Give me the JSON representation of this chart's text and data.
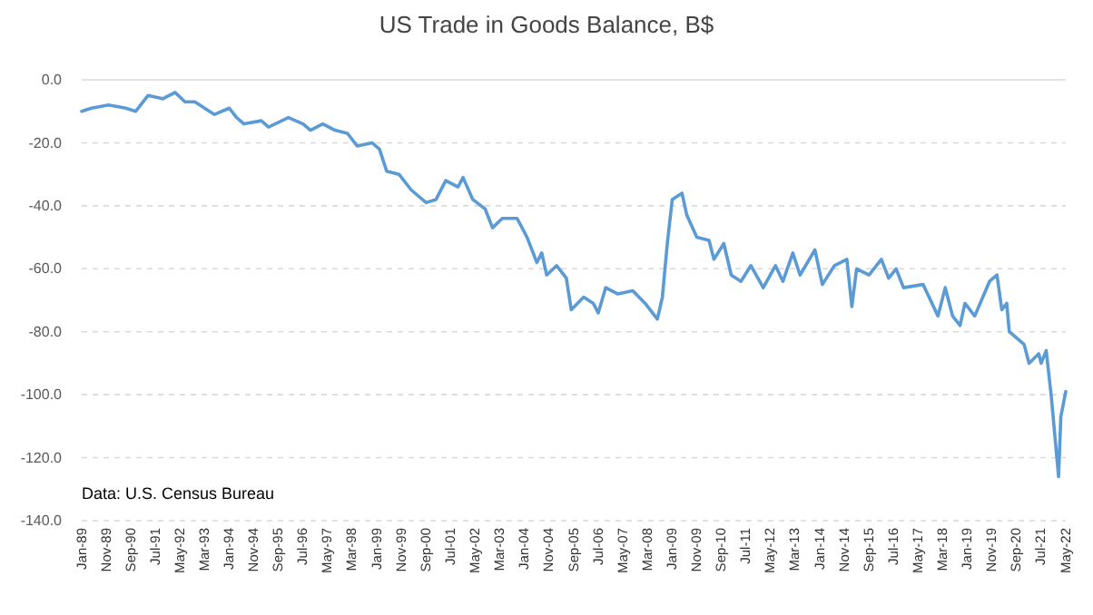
{
  "chart_data": {
    "type": "line",
    "title": "US Trade in Goods Balance, B$",
    "annotations": [
      "Data: U.S. Census Bureau"
    ],
    "x": [
      "1989-01",
      "1989-05",
      "1989-12",
      "1990-07",
      "1990-11",
      "1991-04",
      "1991-10",
      "1992-03",
      "1992-07",
      "1992-11",
      "1993-03",
      "1993-07",
      "1994-01",
      "1994-04",
      "1994-07",
      "1995-02",
      "1995-05",
      "1996-01",
      "1996-07",
      "1996-10",
      "1997-03",
      "1997-08",
      "1998-01",
      "1998-05",
      "1998-11",
      "1999-02",
      "1999-05",
      "1999-10",
      "2000-03",
      "2000-09",
      "2001-01",
      "2001-05",
      "2001-10",
      "2001-12",
      "2002-04",
      "2002-09",
      "2002-12",
      "2003-04",
      "2003-10",
      "2004-02",
      "2004-06",
      "2004-08",
      "2004-10",
      "2005-02",
      "2005-06",
      "2005-08",
      "2006-01",
      "2006-05",
      "2006-07",
      "2006-10",
      "2007-03",
      "2007-09",
      "2008-02",
      "2008-07",
      "2008-09",
      "2008-11",
      "2009-01",
      "2009-05",
      "2009-07",
      "2009-11",
      "2010-04",
      "2010-06",
      "2010-10",
      "2011-01",
      "2011-05",
      "2011-09",
      "2012-02",
      "2012-07",
      "2012-10",
      "2013-02",
      "2013-05",
      "2013-11",
      "2014-02",
      "2014-07",
      "2014-12",
      "2015-02",
      "2015-04",
      "2015-09",
      "2016-02",
      "2016-05",
      "2016-08",
      "2016-11",
      "2017-07",
      "2018-01",
      "2018-04",
      "2018-07",
      "2018-10",
      "2018-12",
      "2019-04",
      "2019-10",
      "2020-01",
      "2020-03",
      "2020-05",
      "2020-06",
      "2020-12",
      "2021-02",
      "2021-06",
      "2021-07",
      "2021-09",
      "2021-11",
      "2022-02",
      "2022-03",
      "2022-05"
    ],
    "series": [
      {
        "color": "#5b9bd5",
        "values": [
          -10,
          -9,
          -8,
          -9,
          -10,
          -5,
          -6,
          -4,
          -7,
          -7,
          -9,
          -11,
          -9,
          -12,
          -14,
          -13,
          -15,
          -12,
          -14,
          -16,
          -14,
          -16,
          -17,
          -21,
          -20,
          -22,
          -29,
          -30,
          -35,
          -39,
          -38,
          -32,
          -34,
          -31,
          -38,
          -41,
          -47,
          -44,
          -44,
          -50,
          -58,
          -55,
          -62,
          -59,
          -63,
          -73,
          -69,
          -71,
          -74,
          -66,
          -68,
          -67,
          -71,
          -76,
          -69,
          -52,
          -38,
          -36,
          -43,
          -50,
          -51,
          -57,
          -52,
          -62,
          -64,
          -59,
          -66,
          -59,
          -64,
          -55,
          -62,
          -54,
          -65,
          -59,
          -57,
          -72,
          -60,
          -62,
          -57,
          -63,
          -60,
          -66,
          -65,
          -75,
          -66,
          -75,
          -78,
          -71,
          -75,
          -64,
          -62,
          -73,
          -71,
          -80,
          -84,
          -90,
          -87,
          -90,
          -86,
          -100,
          -126,
          -107,
          -99
        ]
      }
    ],
    "xlim": [
      "1989-01",
      "2022-05"
    ],
    "xticks": [
      {
        "value": "1989-01",
        "label": "Jan-89"
      },
      {
        "value": "1989-11",
        "label": "Nov-89"
      },
      {
        "value": "1990-09",
        "label": "Sep-90"
      },
      {
        "value": "1991-07",
        "label": "Jul-91"
      },
      {
        "value": "1992-05",
        "label": "May-92"
      },
      {
        "value": "1993-03",
        "label": "Mar-93"
      },
      {
        "value": "1994-01",
        "label": "Jan-94"
      },
      {
        "value": "1994-11",
        "label": "Nov-94"
      },
      {
        "value": "1995-09",
        "label": "Sep-95"
      },
      {
        "value": "1996-07",
        "label": "Jul-96"
      },
      {
        "value": "1997-05",
        "label": "May-97"
      },
      {
        "value": "1998-03",
        "label": "Mar-98"
      },
      {
        "value": "1999-01",
        "label": "Jan-99"
      },
      {
        "value": "1999-11",
        "label": "Nov-99"
      },
      {
        "value": "2000-09",
        "label": "Sep-00"
      },
      {
        "value": "2001-07",
        "label": "Jul-01"
      },
      {
        "value": "2002-05",
        "label": "May-02"
      },
      {
        "value": "2003-03",
        "label": "Mar-03"
      },
      {
        "value": "2004-01",
        "label": "Jan-04"
      },
      {
        "value": "2004-11",
        "label": "Nov-04"
      },
      {
        "value": "2005-09",
        "label": "Sep-05"
      },
      {
        "value": "2006-07",
        "label": "Jul-06"
      },
      {
        "value": "2007-05",
        "label": "May-07"
      },
      {
        "value": "2008-03",
        "label": "Mar-08"
      },
      {
        "value": "2009-01",
        "label": "Jan-09"
      },
      {
        "value": "2009-11",
        "label": "Nov-09"
      },
      {
        "value": "2010-09",
        "label": "Sep-10"
      },
      {
        "value": "2011-07",
        "label": "Jul-11"
      },
      {
        "value": "2012-05",
        "label": "May-12"
      },
      {
        "value": "2013-03",
        "label": "Mar-13"
      },
      {
        "value": "2014-01",
        "label": "Jan-14"
      },
      {
        "value": "2014-11",
        "label": "Nov-14"
      },
      {
        "value": "2015-09",
        "label": "Sep-15"
      },
      {
        "value": "2016-07",
        "label": "Jul-16"
      },
      {
        "value": "2017-05",
        "label": "May-17"
      },
      {
        "value": "2018-03",
        "label": "Mar-18"
      },
      {
        "value": "2019-01",
        "label": "Jan-19"
      },
      {
        "value": "2019-11",
        "label": "Nov-19"
      },
      {
        "value": "2020-09",
        "label": "Sep-20"
      },
      {
        "value": "2021-07",
        "label": "Jul-21"
      },
      {
        "value": "2022-05",
        "label": "May-22"
      }
    ],
    "ylim": [
      -140,
      0
    ],
    "yticks": [
      {
        "value": 0,
        "label": "0.0"
      },
      {
        "value": -20,
        "label": "-20.0"
      },
      {
        "value": -40,
        "label": "-40.0"
      },
      {
        "value": -60,
        "label": "-60.0"
      },
      {
        "value": -80,
        "label": "-80.0"
      },
      {
        "value": -100,
        "label": "-100.0"
      },
      {
        "value": -120,
        "label": "-120.0"
      },
      {
        "value": -140,
        "label": "-140.0"
      }
    ],
    "grid": "y",
    "marker": "none",
    "line_style": "solid"
  }
}
